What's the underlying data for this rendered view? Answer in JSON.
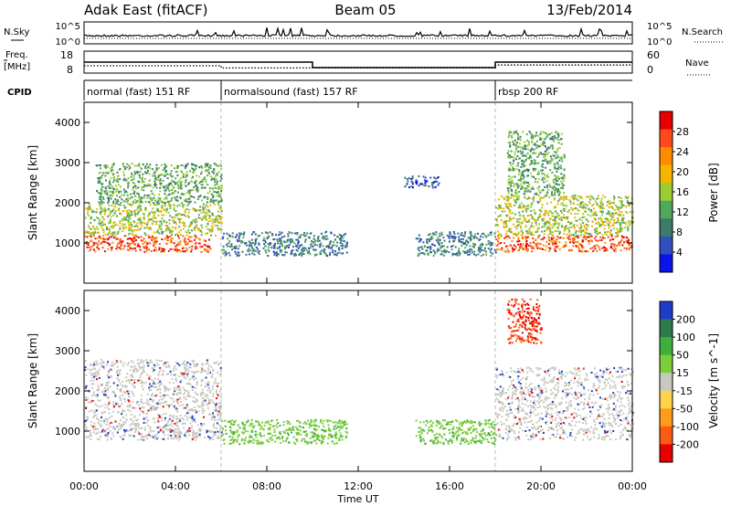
{
  "header": {
    "station": "Adak East (fitACF)",
    "beam": "Beam 05",
    "date": "13/Feb/2014"
  },
  "noise_panel": {
    "left_label": "N.Sky",
    "right_label": "N.Search",
    "tick_top": "10^5",
    "tick_bottom": "10^0"
  },
  "freq_panel": {
    "left_label_line1": "Freq.",
    "left_label_line2": "[MHz]",
    "left_tick_top": "18",
    "left_tick_bottom": "8",
    "right_label": "Nave",
    "right_tick_top": "60",
    "right_tick_bottom": "0"
  },
  "cpid_panel": {
    "label": "CPID",
    "segments": [
      {
        "name": "normal (fast) 151 RF",
        "start_h": 0,
        "end_h": 6
      },
      {
        "name": "normalsound (fast) 157 RF",
        "start_h": 6,
        "end_h": 18
      },
      {
        "name": "rbsp 200 RF",
        "start_h": 18,
        "end_h": 24
      }
    ]
  },
  "x_axis": {
    "label": "Time UT",
    "ticks": [
      "00:00",
      "04:00",
      "08:00",
      "12:00",
      "16:00",
      "20:00",
      "00:00"
    ]
  },
  "power_panel": {
    "ylabel": "Slant Range [km]",
    "yticks": [
      "1000",
      "2000",
      "3000",
      "4000"
    ],
    "colorbar_label": "Power [dB]",
    "colorbar_ticks": [
      "4",
      "8",
      "12",
      "16",
      "20",
      "24",
      "28"
    ],
    "colors": [
      "#0a14e6",
      "#2f4fc0",
      "#3c7a6a",
      "#52a85a",
      "#9acd32",
      "#f4b400",
      "#ff8c00",
      "#ff4a1a",
      "#e60000"
    ]
  },
  "velocity_panel": {
    "ylabel": "Slant Range [km]",
    "yticks": [
      "1000",
      "2000",
      "3000",
      "4000"
    ],
    "colorbar_label": "Velocity [m s^-1]",
    "colorbar_ticks": [
      "200",
      "100",
      "50",
      "15",
      "-15",
      "-50",
      "-100",
      "-200"
    ],
    "colors": [
      "#1e3cc8",
      "#2f7a4a",
      "#3fae3f",
      "#7ccd3a",
      "#c8c8c0",
      "#ffd24a",
      "#ff9a1a",
      "#ff5a14",
      "#e60000"
    ]
  },
  "chart_data": {
    "type": "heatmap",
    "x_range_hours": [
      0,
      24
    ],
    "y_range_km": [
      0,
      4500
    ],
    "freq_mhz": [
      {
        "start_h": 0,
        "end_h": 10,
        "value": 13
      },
      {
        "start_h": 10,
        "end_h": 18,
        "value": 10.5
      },
      {
        "start_h": 18,
        "end_h": 24,
        "value": 13
      }
    ],
    "nave": [
      {
        "start_h": 0,
        "end_h": 6,
        "value": 20
      },
      {
        "start_h": 6,
        "end_h": 18,
        "value": 14
      },
      {
        "start_h": 18,
        "end_h": 24,
        "value": 22
      }
    ],
    "power_echo_regions": [
      {
        "start_h": 0.0,
        "end_h": 5.5,
        "range_km_min": 800,
        "range_km_max": 1200,
        "power_db": 28
      },
      {
        "start_h": 0.0,
        "end_h": 6.0,
        "range_km_min": 1200,
        "range_km_max": 2000,
        "power_db": 16
      },
      {
        "start_h": 0.5,
        "end_h": 6.0,
        "range_km_min": 2000,
        "range_km_max": 3000,
        "power_db": 12
      },
      {
        "start_h": 6.0,
        "end_h": 11.5,
        "range_km_min": 700,
        "range_km_max": 1300,
        "power_db": 6
      },
      {
        "start_h": 14.5,
        "end_h": 18.0,
        "range_km_min": 700,
        "range_km_max": 1300,
        "power_db": 7
      },
      {
        "start_h": 14.0,
        "end_h": 15.5,
        "range_km_min": 2400,
        "range_km_max": 2700,
        "power_db": 5
      },
      {
        "start_h": 18.0,
        "end_h": 24.0,
        "range_km_min": 800,
        "range_km_max": 1200,
        "power_db": 28
      },
      {
        "start_h": 18.0,
        "end_h": 24.0,
        "range_km_min": 1200,
        "range_km_max": 2200,
        "power_db": 14
      },
      {
        "start_h": 18.5,
        "end_h": 21.0,
        "range_km_min": 2200,
        "range_km_max": 3800,
        "power_db": 12
      }
    ],
    "velocity_echo_regions": [
      {
        "start_h": 0.0,
        "end_h": 6.0,
        "range_km_min": 800,
        "range_km_max": 1200,
        "velocity_ms": 0
      },
      {
        "start_h": 0.0,
        "end_h": 6.0,
        "range_km_min": 1200,
        "range_km_max": 2800,
        "velocity_ms": 0
      },
      {
        "start_h": 6.0,
        "end_h": 11.5,
        "range_km_min": 700,
        "range_km_max": 1300,
        "velocity_ms": 40
      },
      {
        "start_h": 14.5,
        "end_h": 18.0,
        "range_km_min": 700,
        "range_km_max": 1300,
        "velocity_ms": 40
      },
      {
        "start_h": 18.0,
        "end_h": 24.0,
        "range_km_min": 800,
        "range_km_max": 2600,
        "velocity_ms": 0
      },
      {
        "start_h": 18.5,
        "end_h": 20.0,
        "range_km_min": 3200,
        "range_km_max": 4300,
        "velocity_ms": -200
      }
    ]
  }
}
